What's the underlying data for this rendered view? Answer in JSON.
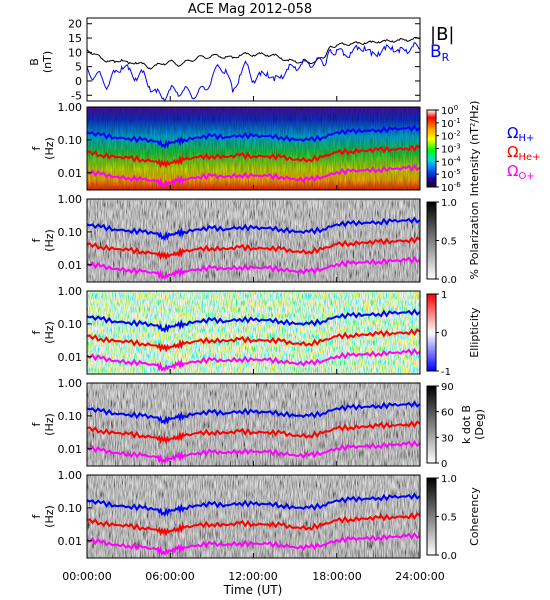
{
  "figure": {
    "title": "ACE Mag 2012-058",
    "x_axis_label": "Time (UT)",
    "x_tick_labels": [
      "00:00:00",
      "06:00:00",
      "12:00:00",
      "18:00:00",
      "24:00:00"
    ]
  },
  "chart_data": [
    {
      "type": "line",
      "panel": "magnetic-field",
      "ylabel": [
        "B",
        "(nT)"
      ],
      "ylim": [
        -7,
        22
      ],
      "ytick_labels": [
        "20",
        "15",
        "10",
        "5",
        "0",
        "-5"
      ],
      "xlim": [
        0,
        24
      ],
      "legend": "right",
      "series": [
        {
          "name": "|B|",
          "color": "#000000",
          "x": [
            0,
            0.5,
            1,
            1.5,
            2,
            2.5,
            3,
            3.5,
            4,
            4.5,
            5,
            5.5,
            6,
            6.5,
            7,
            7.5,
            8,
            8.5,
            9,
            9.5,
            10,
            10.5,
            11,
            11.5,
            12,
            12.5,
            13,
            13.5,
            14,
            14.5,
            15,
            15.5,
            16,
            16.5,
            17,
            17.3,
            17.6,
            18,
            18.5,
            19,
            19.5,
            20,
            20.5,
            21,
            21.5,
            22,
            22.5,
            23,
            23.5,
            24
          ],
          "values": [
            11,
            9.5,
            8,
            7,
            6.5,
            7.5,
            6,
            6.5,
            6,
            4.5,
            5.5,
            6,
            7,
            5.5,
            6.5,
            7,
            8.5,
            8,
            9,
            8.5,
            8.5,
            8,
            9,
            9.5,
            9,
            9.5,
            9,
            9,
            8,
            7,
            7,
            6.5,
            6.5,
            7,
            8,
            10,
            12,
            12.5,
            12.8,
            13,
            13.2,
            13.3,
            13.5,
            13.7,
            13.9,
            14,
            14.2,
            14.4,
            14.6,
            14.8
          ]
        },
        {
          "name": "B_R",
          "color": "#0000ff",
          "x": [
            0,
            0.5,
            1,
            1.5,
            2,
            2.5,
            3,
            3.5,
            4,
            4.5,
            5,
            5.5,
            6,
            6.5,
            7,
            7.5,
            8,
            8.5,
            9,
            9.5,
            10,
            10.5,
            11,
            11.5,
            12,
            12.5,
            13,
            13.5,
            14,
            14.5,
            15,
            15.5,
            16,
            16.5,
            17,
            17.3,
            17.6,
            18,
            18.5,
            19,
            19.5,
            20,
            20.5,
            21,
            21.5,
            22,
            22.5,
            23,
            23.5,
            24
          ],
          "values": [
            5,
            1,
            2,
            -2,
            3,
            5,
            4,
            1,
            3,
            -2,
            -4,
            -6,
            -3,
            -4,
            -3,
            -5,
            -4,
            -3,
            1,
            5,
            4,
            -4,
            2,
            6,
            0,
            2,
            3,
            0,
            2,
            4,
            5,
            6,
            6,
            7,
            6,
            8,
            10,
            11,
            9,
            10,
            11,
            12,
            9,
            10,
            11,
            12,
            10,
            11,
            12,
            11
          ]
        }
      ]
    },
    {
      "type": "heatmap",
      "panel": "intensity",
      "ylabel": [
        "f",
        "(Hz)"
      ],
      "yscale": "log",
      "ylim": [
        0.003,
        1.0
      ],
      "ytick_labels": [
        "1.00",
        "0.10",
        "0.01"
      ],
      "colorbar_label": "Intensity (nT²/Hz)",
      "colorbar_ticks": [
        "10^0",
        "10^-1",
        "10^-2",
        "10^-3",
        "10^-4",
        "10^-5",
        "10^-6"
      ],
      "colorbar_colors": [
        "#ffffff",
        "#ff0000",
        "#ffa500",
        "#ffff00",
        "#00ff00",
        "#00e0e0",
        "#0060ff",
        "#2000a0",
        "#200020"
      ]
    },
    {
      "type": "heatmap",
      "panel": "polarization",
      "ylabel": [
        "f",
        "(Hz)"
      ],
      "yscale": "log",
      "ylim": [
        0.003,
        1.0
      ],
      "ytick_labels": [
        "1.00",
        "0.10",
        "0.01"
      ],
      "colorbar_label": "% Polarization",
      "colorbar_ticks": [
        "1.0",
        "0.5",
        "0.0"
      ],
      "colorbar_colors": [
        "#000000",
        "#ffffff"
      ]
    },
    {
      "type": "heatmap",
      "panel": "ellipticity",
      "ylabel": [
        "f",
        "(Hz)"
      ],
      "yscale": "log",
      "ylim": [
        0.003,
        1.0
      ],
      "ytick_labels": [
        "1.00",
        "0.10",
        "0.01"
      ],
      "colorbar_label": "Ellipticity",
      "colorbar_ticks": [
        "1",
        "0",
        "-1"
      ],
      "colorbar_colors": [
        "#ff0000",
        "#ffffff",
        "#0000ff"
      ]
    },
    {
      "type": "heatmap",
      "panel": "wave-normal-angle",
      "ylabel": [
        "f",
        "(Hz)"
      ],
      "yscale": "log",
      "ylim": [
        0.003,
        1.0
      ],
      "ytick_labels": [
        "1.00",
        "0.10",
        "0.01"
      ],
      "colorbar_label": [
        "k dot B",
        "(Deg)"
      ],
      "colorbar_ticks": [
        "90",
        "60",
        "30",
        "0"
      ],
      "colorbar_colors": [
        "#000000",
        "#ffffff"
      ]
    },
    {
      "type": "heatmap",
      "panel": "coherency",
      "ylabel": [
        "f",
        "(Hz)"
      ],
      "yscale": "log",
      "ylim": [
        0.003,
        1.0
      ],
      "ytick_labels": [
        "1.00",
        "0.10",
        "0.01"
      ],
      "colorbar_label": "Coherency",
      "colorbar_ticks": [
        "1.0",
        "0.5",
        "0.0"
      ],
      "colorbar_colors": [
        "#000000",
        "#ffffff"
      ]
    }
  ],
  "gyrofrequency_lines": {
    "legend": [
      "Ω_H+",
      "Ω_He+",
      "Ω_O+"
    ],
    "series": [
      {
        "name": "Ω_H+",
        "color": "#0000ff",
        "x": [
          0,
          1,
          2,
          3,
          4,
          5,
          5.5,
          6,
          6.5,
          7,
          8,
          9,
          10,
          11,
          12,
          13,
          14,
          15,
          16,
          17,
          18,
          19,
          20,
          21,
          22,
          23,
          24
        ],
        "values": [
          0.17,
          0.14,
          0.12,
          0.11,
          0.1,
          0.09,
          0.07,
          0.08,
          0.09,
          0.1,
          0.12,
          0.13,
          0.12,
          0.14,
          0.13,
          0.13,
          0.12,
          0.1,
          0.1,
          0.12,
          0.17,
          0.18,
          0.19,
          0.2,
          0.21,
          0.22,
          0.23
        ]
      },
      {
        "name": "Ω_He+",
        "color": "#ff0000",
        "x": [
          0,
          1,
          2,
          3,
          4,
          5,
          5.5,
          6,
          6.5,
          7,
          8,
          9,
          10,
          11,
          12,
          13,
          14,
          15,
          16,
          17,
          18,
          19,
          20,
          21,
          22,
          23,
          24
        ],
        "values": [
          0.043,
          0.035,
          0.03,
          0.028,
          0.025,
          0.022,
          0.018,
          0.02,
          0.023,
          0.025,
          0.03,
          0.032,
          0.03,
          0.034,
          0.032,
          0.032,
          0.03,
          0.025,
          0.025,
          0.03,
          0.042,
          0.045,
          0.047,
          0.05,
          0.052,
          0.055,
          0.058
        ]
      },
      {
        "name": "Ω_O+",
        "color": "#ff00ff",
        "x": [
          0,
          1,
          2,
          3,
          4,
          5,
          5.5,
          6,
          6.5,
          7,
          8,
          9,
          10,
          11,
          12,
          13,
          14,
          15,
          16,
          17,
          18,
          19,
          20,
          21,
          22,
          23,
          24
        ],
        "values": [
          0.011,
          0.009,
          0.0075,
          0.007,
          0.0063,
          0.0055,
          0.0045,
          0.005,
          0.0057,
          0.0063,
          0.0075,
          0.008,
          0.0075,
          0.0085,
          0.008,
          0.008,
          0.0075,
          0.0063,
          0.0063,
          0.0075,
          0.0105,
          0.0112,
          0.0118,
          0.0125,
          0.013,
          0.0138,
          0.0145
        ]
      }
    ]
  }
}
